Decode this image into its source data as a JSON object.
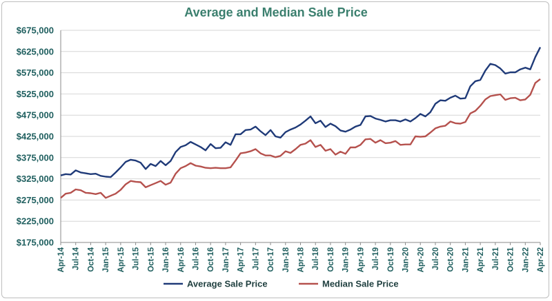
{
  "chart_data": {
    "type": "line",
    "title": "Average and Median Sale Price",
    "xlabel": "",
    "ylabel": "",
    "ylim": [
      175000,
      675000
    ],
    "yticks": [
      175000,
      225000,
      275000,
      325000,
      375000,
      425000,
      475000,
      525000,
      575000,
      625000,
      675000
    ],
    "ytick_labels": [
      "$175,000",
      "$225,000",
      "$275,000",
      "$325,000",
      "$375,000",
      "$425,000",
      "$475,000",
      "$525,000",
      "$575,000",
      "$625,000",
      "$675,000"
    ],
    "x_start": "Apr-14",
    "x_end": "Apr-22",
    "xtick_labels": [
      "Apr-14",
      "Jul-14",
      "Oct-14",
      "Jan-15",
      "Apr-15",
      "Jul-15",
      "Oct-15",
      "Jan-16",
      "Apr-16",
      "Jul-16",
      "Oct-16",
      "Jan-17",
      "Apr-17",
      "Jul-17",
      "Oct-17",
      "Jan-18",
      "Apr-18",
      "Jul-18",
      "Oct-18",
      "Jan-19",
      "Apr-19",
      "Jul-19",
      "Oct-19",
      "Jan-20",
      "Apr-20",
      "Jul-20",
      "Oct-20",
      "Jan-21",
      "Apr-21",
      "Jul-21",
      "Oct-21",
      "Jan-22",
      "Apr-22"
    ],
    "grid": true,
    "legend": "bottom",
    "series": [
      {
        "name": "Average Sale Price",
        "color": "#1f3a78",
        "values": [
          333000,
          336000,
          335000,
          345000,
          340000,
          338000,
          336000,
          337000,
          332000,
          330000,
          329000,
          340000,
          352000,
          365000,
          370000,
          368000,
          363000,
          348000,
          360000,
          355000,
          367000,
          357000,
          367000,
          388000,
          400000,
          404000,
          412000,
          406000,
          400000,
          392000,
          407000,
          397000,
          398000,
          411000,
          405000,
          430000,
          430000,
          440000,
          441000,
          448000,
          437000,
          428000,
          440000,
          425000,
          422000,
          435000,
          441000,
          446000,
          453000,
          462000,
          472000,
          456000,
          462000,
          447000,
          455000,
          449000,
          439000,
          436000,
          441000,
          448000,
          452000,
          472000,
          473000,
          467000,
          464000,
          460000,
          463000,
          463000,
          460000,
          465000,
          460000,
          468000,
          478000,
          472000,
          482000,
          502000,
          510000,
          509000,
          516000,
          521000,
          514000,
          515000,
          543000,
          555000,
          558000,
          580000,
          596000,
          593000,
          585000,
          573000,
          576000,
          576000,
          583000,
          587000,
          583000,
          612000,
          635000
        ]
      },
      {
        "name": "Median Sale Price",
        "color": "#b5514d",
        "values": [
          280000,
          290000,
          292000,
          300000,
          298000,
          292000,
          291000,
          289000,
          292000,
          280000,
          285000,
          290000,
          299000,
          312000,
          320000,
          318000,
          317000,
          305000,
          310000,
          315000,
          320000,
          311000,
          316000,
          337000,
          350000,
          355000,
          362000,
          356000,
          354000,
          351000,
          350000,
          351000,
          350000,
          350000,
          352000,
          368000,
          385000,
          387000,
          390000,
          395000,
          385000,
          380000,
          380000,
          376000,
          379000,
          390000,
          386000,
          395000,
          405000,
          408000,
          416000,
          400000,
          405000,
          391000,
          395000,
          382000,
          389000,
          384000,
          399000,
          399000,
          405000,
          418000,
          419000,
          410000,
          416000,
          409000,
          410000,
          414000,
          405000,
          406000,
          406000,
          425000,
          424000,
          425000,
          434000,
          444000,
          448000,
          450000,
          460000,
          456000,
          455000,
          459000,
          479000,
          485000,
          497000,
          512000,
          520000,
          522000,
          524000,
          511000,
          515000,
          516000,
          510000,
          512000,
          523000,
          551000,
          560000
        ]
      }
    ]
  }
}
